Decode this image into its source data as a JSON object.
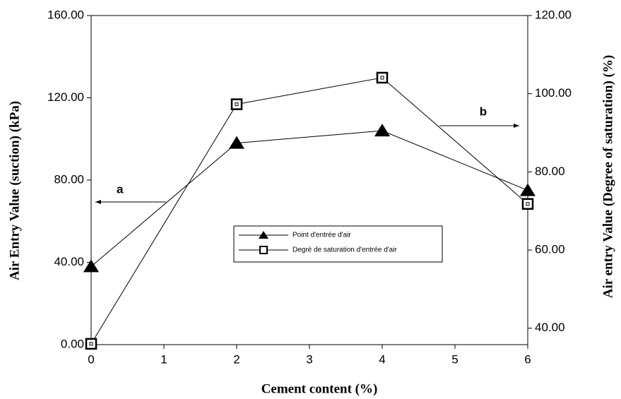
{
  "chart_data": {
    "type": "line",
    "x_label": "Cement content (%)",
    "y_label": "Air Entry Value (suction) (kPa)",
    "y2_label": "Air entry Value (Degree of saturation) (%)",
    "x": [
      0,
      2,
      4,
      6
    ],
    "xlim": [
      0,
      6
    ],
    "xticks": [
      0,
      1,
      2,
      3,
      4,
      5,
      6
    ],
    "ylim": [
      0,
      160
    ],
    "yticks": [
      {
        "value": 0,
        "label": "0.00"
      },
      {
        "value": 40,
        "label": "40.00"
      },
      {
        "value": 80,
        "label": "80.00"
      },
      {
        "value": 120,
        "label": "120.00"
      },
      {
        "value": 160,
        "label": "160.00"
      }
    ],
    "y2lim": [
      35.8,
      120
    ],
    "y2ticks": [
      {
        "value": 40,
        "label": "40.00"
      },
      {
        "value": 60,
        "label": "60.00"
      },
      {
        "value": 80,
        "label": "80.00"
      },
      {
        "value": 100,
        "label": "100.00"
      },
      {
        "value": 120,
        "label": "120.00"
      }
    ],
    "series": [
      {
        "name": "Point d'entrée d'air",
        "color": "#000000",
        "marker": "triangle",
        "values": [
          38,
          98,
          104,
          75
        ]
      },
      {
        "name": "Degré de saturation d'entrée d'air",
        "color": "#000000",
        "marker": "square",
        "axis": "y2",
        "values": [
          36,
          97.3,
          104.1,
          71.8
        ]
      }
    ],
    "annotations": [
      "a",
      "b"
    ]
  }
}
